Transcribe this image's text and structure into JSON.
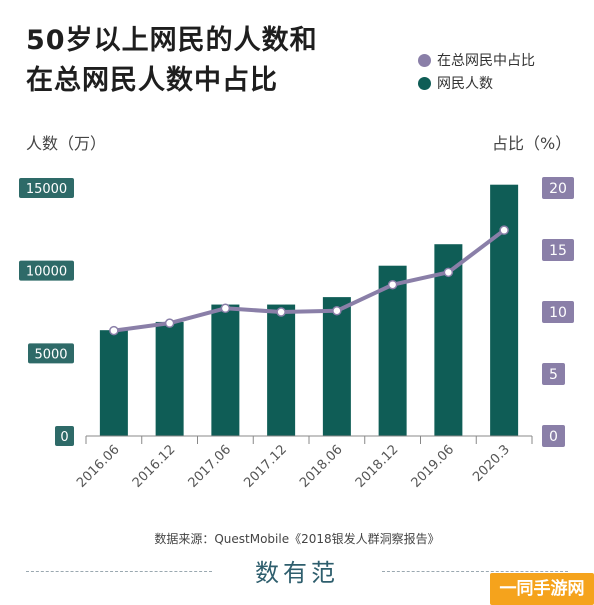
{
  "title": {
    "line1": "50岁以上网民的人数和",
    "line2": "在总网民人数中占比"
  },
  "legend": [
    {
      "label": "在总网民中占比",
      "color": "#8a7fa8"
    },
    {
      "label": "网民人数",
      "color": "#0f5d56"
    }
  ],
  "axes": {
    "left_title": "人数（万）",
    "right_title": "占比（%）"
  },
  "source": "数据来源：QuestMobile《2018银发人群洞察报告》",
  "brand": "数有范",
  "watermark": "一同手游网",
  "chart_data": {
    "type": "bar",
    "categories": [
      "2016.06",
      "2016.12",
      "2017.06",
      "2017.12",
      "2018.06",
      "2018.12",
      "2019.06",
      "2020.3"
    ],
    "series": [
      {
        "name": "网民人数",
        "type": "bar",
        "axis": "left",
        "color": "#0f5d56",
        "values": [
          6400,
          6900,
          7950,
          7950,
          8400,
          10300,
          11600,
          15200
        ]
      },
      {
        "name": "在总网民中占比",
        "type": "line",
        "axis": "right",
        "color": "#8a7fa8",
        "values": [
          8.5,
          9.1,
          10.3,
          10.0,
          10.1,
          12.2,
          13.2,
          16.6
        ]
      }
    ],
    "y_left": {
      "ticks": [
        "0",
        "5000",
        "10000",
        "15000"
      ],
      "range": [
        0,
        15000
      ],
      "color": "#2e6a68"
    },
    "y_right": {
      "ticks": [
        "0",
        "5",
        "10",
        "15",
        "20"
      ],
      "range": [
        0,
        20
      ],
      "color": "#8a7fa8"
    },
    "grid": false
  }
}
